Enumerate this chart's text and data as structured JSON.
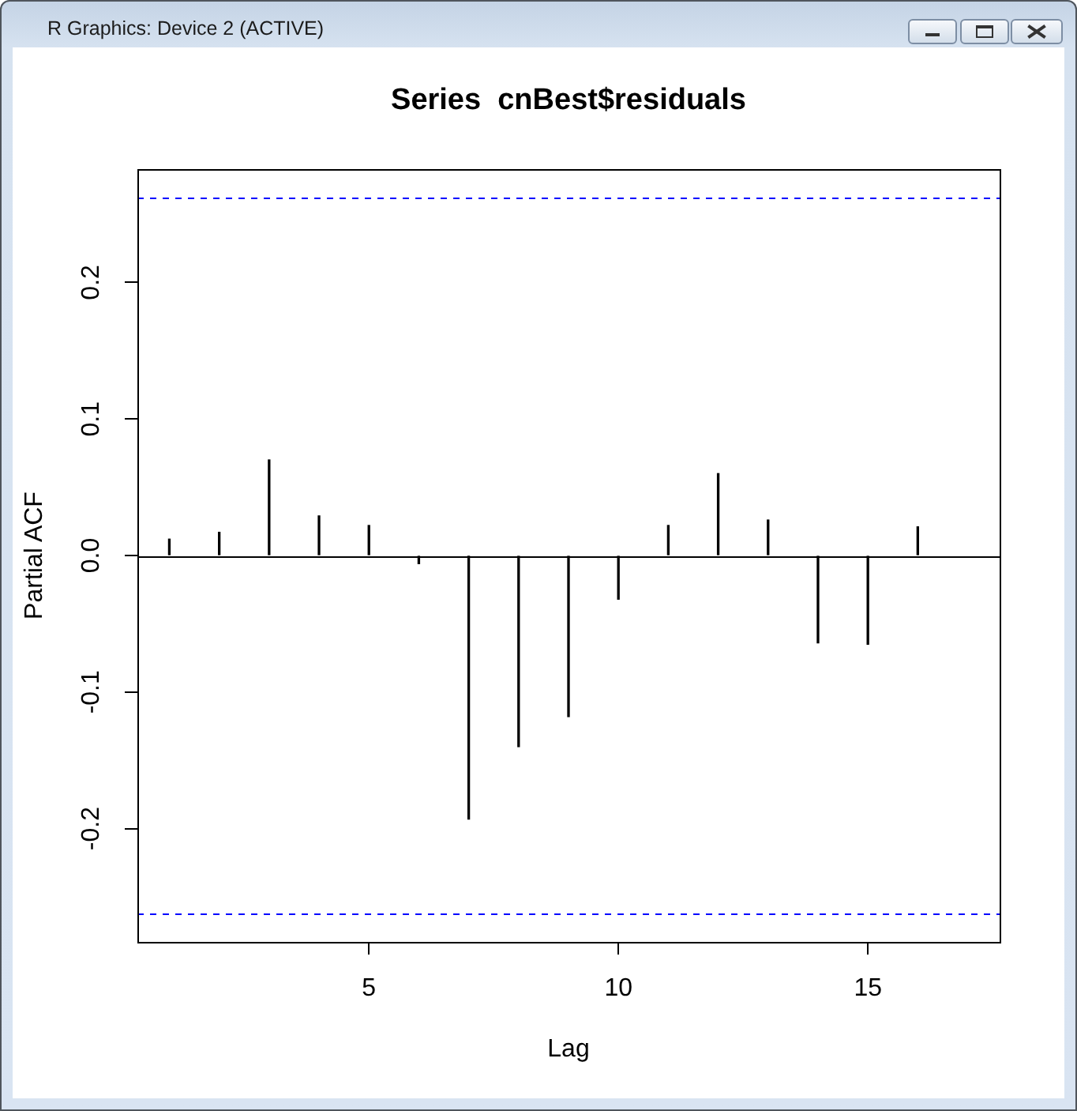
{
  "chart_data": {
    "type": "bar",
    "title": "Series  cnBest$residuals",
    "xlabel": "Lag",
    "ylabel": "Partial ACF",
    "annotations": [
      "R Graphics: Device 2 (ACTIVE)"
    ],
    "x": [
      1,
      2,
      3,
      4,
      5,
      6,
      7,
      8,
      9,
      10,
      11,
      12,
      13,
      14,
      15,
      16
    ],
    "values": [
      0.012,
      0.017,
      0.07,
      0.029,
      0.022,
      -0.006,
      -0.193,
      -0.14,
      -0.118,
      -0.032,
      0.022,
      0.06,
      0.026,
      -0.064,
      -0.065,
      0.021
    ],
    "color": "#000000",
    "xlim": [
      0.36,
      17.64
    ],
    "xticks": [
      5,
      10,
      15
    ],
    "ylim": [
      -0.283,
      0.283
    ],
    "yticks": [
      -0.2,
      -0.1,
      {
        "value": 0,
        "label": "0.0"
      },
      0.1,
      0.2
    ],
    "ref_lines": [
      {
        "axis": "y",
        "value": 0.262,
        "color": "#0000ff",
        "line_style": "dashed"
      },
      {
        "axis": "y",
        "value": -0.262,
        "color": "#0000ff",
        "line_style": "dashed"
      },
      {
        "axis": "y",
        "value": 0,
        "color": "#000000",
        "line_style": "solid"
      }
    ],
    "grid": false,
    "legend": false
  }
}
